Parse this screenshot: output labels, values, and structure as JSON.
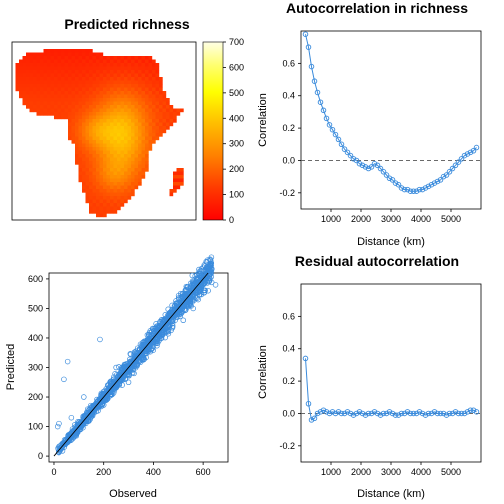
{
  "chart_data": [
    {
      "type": "heatmap",
      "title": "Predicted richness",
      "legend_ticks": [
        "700",
        "600",
        "500",
        "400",
        "300",
        "200",
        "100",
        "0"
      ],
      "legend_range": [
        0,
        700
      ],
      "colorscale": [
        "#ff0000",
        "#ff4000",
        "#ff8000",
        "#ffbf00",
        "#ffff00",
        "#ffff80",
        "#ffffe6"
      ]
    },
    {
      "type": "line",
      "title": "Autocorrelation in richness",
      "xlabel": "Distance (km)",
      "ylabel": "Correlation",
      "xlim": [
        0,
        6000
      ],
      "ylim": [
        -0.3,
        0.8
      ],
      "x_ticks": [
        "1000",
        "2000",
        "3000",
        "4000",
        "5000"
      ],
      "y_ticks": [
        "-0.2",
        "0.0",
        "0.2",
        "0.4",
        "0.6"
      ],
      "reference_line": 0,
      "x": [
        150,
        250,
        350,
        450,
        550,
        650,
        750,
        850,
        950,
        1050,
        1150,
        1250,
        1350,
        1450,
        1550,
        1650,
        1750,
        1850,
        1950,
        2050,
        2150,
        2250,
        2350,
        2450,
        2550,
        2650,
        2750,
        2850,
        2950,
        3050,
        3150,
        3250,
        3350,
        3450,
        3550,
        3650,
        3750,
        3850,
        3950,
        4050,
        4150,
        4250,
        4350,
        4450,
        4550,
        4650,
        4750,
        4850,
        4950,
        5050,
        5150,
        5250,
        5350,
        5450,
        5550,
        5650,
        5750,
        5850
      ],
      "values": [
        0.78,
        0.7,
        0.58,
        0.49,
        0.42,
        0.36,
        0.31,
        0.26,
        0.22,
        0.19,
        0.16,
        0.13,
        0.1,
        0.07,
        0.05,
        0.03,
        0.01,
        0.0,
        -0.02,
        -0.03,
        -0.04,
        -0.05,
        -0.04,
        -0.02,
        -0.03,
        -0.05,
        -0.07,
        -0.09,
        -0.11,
        -0.12,
        -0.14,
        -0.15,
        -0.17,
        -0.18,
        -0.18,
        -0.19,
        -0.19,
        -0.19,
        -0.18,
        -0.18,
        -0.17,
        -0.16,
        -0.15,
        -0.14,
        -0.13,
        -0.12,
        -0.1,
        -0.09,
        -0.07,
        -0.05,
        -0.03,
        -0.01,
        0.01,
        0.03,
        0.04,
        0.05,
        0.06,
        0.08
      ]
    },
    {
      "type": "scatter",
      "xlabel": "Observed",
      "ylabel": "Predicted",
      "xlim": [
        -20,
        700
      ],
      "ylim": [
        -20,
        620
      ],
      "x_ticks": [
        "0",
        "200",
        "400",
        "600"
      ],
      "y_ticks": [
        "0",
        "100",
        "200",
        "300",
        "400",
        "500",
        "600"
      ],
      "reference_line": "y = x",
      "points": [
        [
          40,
          260
        ],
        [
          55,
          320
        ],
        [
          185,
          395
        ],
        [
          20,
          110
        ],
        [
          15,
          100
        ],
        [
          70,
          130
        ],
        [
          90,
          75
        ],
        [
          250,
          300
        ],
        [
          120,
          200
        ],
        [
          300,
          250
        ],
        [
          430,
          400
        ],
        [
          520,
          460
        ],
        [
          580,
          530
        ],
        [
          620,
          560
        ],
        [
          650,
          580
        ],
        [
          600,
          580
        ],
        [
          560,
          500
        ]
      ]
    },
    {
      "type": "line",
      "title": "Residual autocorrelation",
      "xlabel": "Distance (km)",
      "ylabel": "Correlation",
      "xlim": [
        0,
        6000
      ],
      "ylim": [
        -0.3,
        0.8
      ],
      "x_ticks": [
        "1000",
        "2000",
        "3000",
        "4000",
        "5000"
      ],
      "y_ticks": [
        "-0.2",
        "0.0",
        "0.2",
        "0.4",
        "0.6"
      ],
      "reference_line": 0,
      "x": [
        150,
        250,
        350,
        450,
        550,
        650,
        750,
        850,
        950,
        1050,
        1150,
        1250,
        1350,
        1450,
        1550,
        1650,
        1750,
        1850,
        1950,
        2050,
        2150,
        2250,
        2350,
        2450,
        2550,
        2650,
        2750,
        2850,
        2950,
        3050,
        3150,
        3250,
        3350,
        3450,
        3550,
        3650,
        3750,
        3850,
        3950,
        4050,
        4150,
        4250,
        4350,
        4450,
        4550,
        4650,
        4750,
        4850,
        4950,
        5050,
        5150,
        5250,
        5350,
        5450,
        5550,
        5650,
        5750,
        5850
      ],
      "values": [
        0.34,
        0.06,
        -0.04,
        -0.03,
        0.0,
        0.01,
        0.02,
        0.01,
        0.0,
        0.01,
        0.0,
        0.01,
        0.0,
        0.0,
        0.01,
        0.0,
        -0.01,
        0.0,
        0.01,
        0.0,
        -0.01,
        0.0,
        0.0,
        0.01,
        0.0,
        -0.01,
        0.0,
        0.0,
        0.01,
        0.0,
        -0.01,
        -0.01,
        0.0,
        0.0,
        0.01,
        0.0,
        0.0,
        0.0,
        0.01,
        0.0,
        -0.01,
        0.0,
        0.0,
        0.01,
        0.0,
        0.0,
        0.0,
        -0.01,
        0.0,
        0.0,
        0.01,
        0.0,
        0.0,
        0.0,
        0.01,
        0.02,
        0.02,
        0.01
      ]
    }
  ]
}
